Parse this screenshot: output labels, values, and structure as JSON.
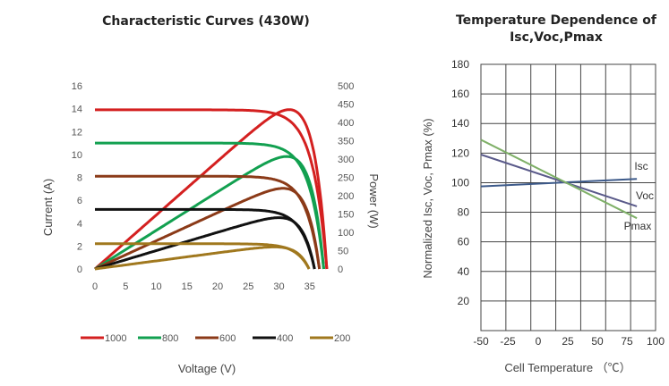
{
  "chart_data": [
    {
      "type": "line",
      "title": "Characteristic Curves (430W)",
      "xlabel": "Voltage (V)",
      "ylabel": "Current (A)",
      "y2label": "Power (W)",
      "xlim": [
        0,
        40
      ],
      "ylim": [
        0,
        16
      ],
      "y2lim": [
        0,
        500
      ],
      "xticks": [
        "0",
        "5",
        "10",
        "15",
        "20",
        "25",
        "30",
        "35"
      ],
      "yticks": [
        "0",
        "2",
        "4",
        "6",
        "8",
        "10",
        "12",
        "14",
        "16"
      ],
      "y2ticks": [
        "0",
        "50",
        "100",
        "150",
        "200",
        "250",
        "300",
        "350",
        "400",
        "450",
        "500"
      ],
      "grid": false,
      "legend_position": "bottom",
      "series": [
        {
          "name": "1000",
          "color": "#d42020",
          "isc": 13.9,
          "voc": 37.8,
          "v_max_power": 31.3,
          "pmax": 435
        },
        {
          "name": "800",
          "color": "#12a050",
          "isc": 11.0,
          "voc": 37.3,
          "v_max_power": 31.0,
          "pmax": 307
        },
        {
          "name": "600",
          "color": "#8b3a18",
          "isc": 8.1,
          "voc": 36.6,
          "v_max_power": 30.3,
          "pmax": 220
        },
        {
          "name": "400",
          "color": "#111111",
          "isc": 5.2,
          "voc": 35.8,
          "v_max_power": 29.6,
          "pmax": 140
        },
        {
          "name": "200",
          "color": "#a0781e",
          "isc": 2.2,
          "voc": 34.9,
          "v_max_power": 29.0,
          "pmax": 60
        }
      ]
    },
    {
      "type": "line",
      "title": "Temperature Dependence of Isc,Voc,Pmax",
      "title_lines": [
        "Temperature Dependence of",
        "Isc,Voc,Pmax"
      ],
      "xlabel": "Cell Temperature （℃）",
      "ylabel": "Normalized Isc, Voc, Pmax (%)",
      "xlim": [
        -40,
        100
      ],
      "ylim": [
        0,
        180
      ],
      "xticks": [
        "-50",
        "-25",
        "0",
        "25",
        "50",
        "75",
        "100"
      ],
      "yticks": [
        "20",
        "40",
        "60",
        "80",
        "100",
        "120",
        "140",
        "160",
        "180"
      ],
      "grid": true,
      "series": [
        {
          "name": "Isc",
          "color": "#3d5a8a",
          "x": [
            -40,
            85
          ],
          "y": [
            97.5,
            102.5
          ]
        },
        {
          "name": "Voc",
          "color": "#5a5a8a",
          "x": [
            -40,
            85
          ],
          "y": [
            119,
            84
          ]
        },
        {
          "name": "Pmax",
          "color": "#7fb068",
          "x": [
            -40,
            85
          ],
          "y": [
            129,
            76
          ]
        }
      ]
    }
  ]
}
